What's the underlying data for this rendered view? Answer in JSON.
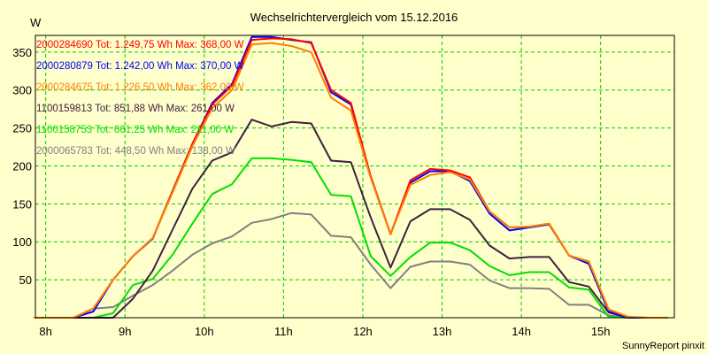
{
  "chart_data": {
    "type": "line",
    "title": "Wechselrichtervergleich vom 15.12.2016",
    "ylabel": "W",
    "xlabel": "",
    "footer": "SunnyReport pinxit",
    "xlim": [
      7.87,
      15.93
    ],
    "ylim": [
      0,
      372
    ],
    "grid": true,
    "legend_position": "top-left",
    "x_ticks": [
      8,
      9,
      10,
      11,
      12,
      13,
      14,
      15
    ],
    "x_tick_labels": [
      "8h",
      "9h",
      "10h",
      "11h",
      "12h",
      "13h",
      "14h",
      "15h"
    ],
    "y_ticks": [
      50,
      100,
      150,
      200,
      250,
      300,
      350
    ],
    "y_tick_labels": [
      "50",
      "100",
      "150",
      "200",
      "250",
      "300",
      "350"
    ],
    "x": [
      7.85,
      8.1,
      8.35,
      8.6,
      8.85,
      9.1,
      9.35,
      9.6,
      9.85,
      10.1,
      10.35,
      10.6,
      10.85,
      11.1,
      11.35,
      11.6,
      11.85,
      12.1,
      12.35,
      12.6,
      12.85,
      13.1,
      13.35,
      13.6,
      13.85,
      14.1,
      14.35,
      14.6,
      14.85,
      15.1,
      15.35,
      15.6,
      15.85
    ],
    "series": [
      {
        "name": "2000065783",
        "legend": "2000065783 Tot: 448,50 Wh Max: 138,00 W",
        "color": "#808080",
        "values": [
          0,
          0,
          0,
          12,
          14,
          29,
          43,
          62,
          83,
          98,
          107,
          125,
          130,
          138,
          136,
          108,
          106,
          70,
          39,
          67,
          74,
          74,
          70,
          49,
          39,
          39,
          38,
          17,
          17,
          3,
          0,
          0,
          0
        ]
      },
      {
        "name": "1100158753",
        "legend": "1100158753 Tot: 661,25 Wh Max: 211,00 W",
        "color": "#00e000",
        "values": [
          0,
          0,
          0,
          0,
          6,
          43,
          51,
          83,
          124,
          163,
          176,
          210,
          210,
          208,
          205,
          162,
          160,
          81,
          55,
          80,
          99,
          99,
          89,
          68,
          56,
          60,
          60,
          40,
          37,
          1,
          0,
          0,
          0
        ]
      },
      {
        "name": "1100159813",
        "legend": "1100159813 Tot: 851,88 Wh Max: 261,00 W",
        "color": "#402040",
        "values": [
          0,
          0,
          0,
          0,
          0,
          25,
          62,
          116,
          170,
          207,
          218,
          261,
          252,
          258,
          256,
          207,
          205,
          132,
          66,
          127,
          143,
          143,
          129,
          95,
          78,
          80,
          80,
          47,
          41,
          7,
          0,
          0,
          0
        ]
      },
      {
        "name": "2000280879",
        "legend": "2000280879 Tot: 1.242,00 Wh Max: 370,00 W",
        "color": "#0000ff",
        "values": [
          0,
          0,
          0,
          8,
          50,
          81,
          104,
          167,
          229,
          283,
          308,
          370,
          370,
          366,
          363,
          297,
          281,
          186,
          110,
          178,
          193,
          193,
          180,
          137,
          115,
          119,
          123,
          82,
          71,
          8,
          0,
          0,
          0
        ]
      },
      {
        "name": "2000284690",
        "legend": "2000284690 Tot: 1.249,75 Wh Max: 368,00 W",
        "color": "#ff0000",
        "values": [
          0,
          0,
          0,
          12,
          50,
          81,
          105,
          167,
          229,
          281,
          306,
          366,
          368,
          367,
          362,
          300,
          283,
          186,
          110,
          181,
          196,
          194,
          185,
          140,
          119,
          120,
          124,
          82,
          74,
          11,
          1,
          0,
          0
        ]
      },
      {
        "name": "2000284675",
        "legend": "2000284675 Tot: 1.226,50 Wh Max: 362,00 W",
        "color": "#ff8000",
        "values": [
          0,
          0,
          0,
          12,
          50,
          81,
          105,
          165,
          226,
          276,
          300,
          360,
          362,
          358,
          350,
          290,
          273,
          184,
          110,
          175,
          188,
          192,
          182,
          140,
          119,
          120,
          124,
          82,
          74,
          11,
          1,
          0,
          0
        ]
      }
    ]
  }
}
